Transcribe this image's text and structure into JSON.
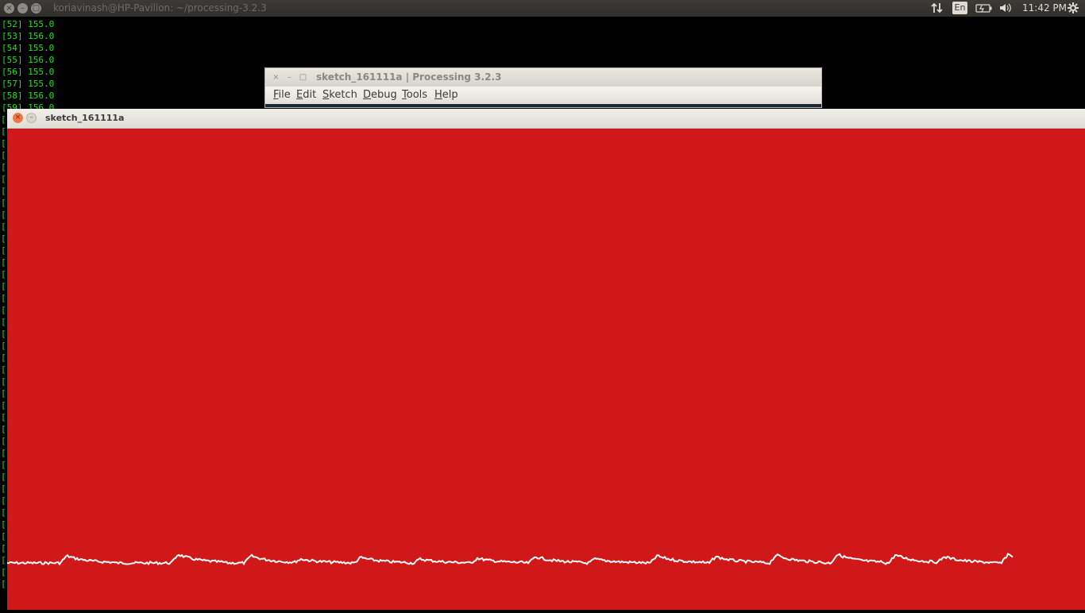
{
  "top_panel": {
    "terminal_title": "koriavinash@HP-Pavilion: ~/processing-3.2.3",
    "buttons": {
      "close": "×",
      "minimize": "–",
      "maximize": "□"
    },
    "tray": {
      "network_icon": "transfer-arrows-icon",
      "keyboard_lang": "En",
      "battery_icon": "battery-icon",
      "volume_icon": "volume-icon",
      "clock": "11:42 PM",
      "settings_icon": "gear-icon"
    }
  },
  "terminal": {
    "lines": [
      "[52] 155.0",
      "[53] 156.0",
      "[54] 155.0",
      "[55] 156.0",
      "[56] 155.0",
      "[57] 155.0",
      "[58] 156.0",
      "[59] 156.0"
    ],
    "bracket": "[",
    "text_color": "#19e619"
  },
  "ide_window": {
    "title": "sketch_161111a | Processing 3.2.3",
    "buttons": {
      "close": "×",
      "minimize": "–",
      "maximize": "□"
    },
    "menu": [
      "File",
      "Edit",
      "Sketch",
      "Debug",
      "Tools",
      "Help"
    ]
  },
  "sketch_window": {
    "title": "sketch_161111a",
    "buttons": {
      "close": "×",
      "minimize": "–"
    },
    "background_color": "#d01818",
    "line_color": "#ffffff"
  }
}
